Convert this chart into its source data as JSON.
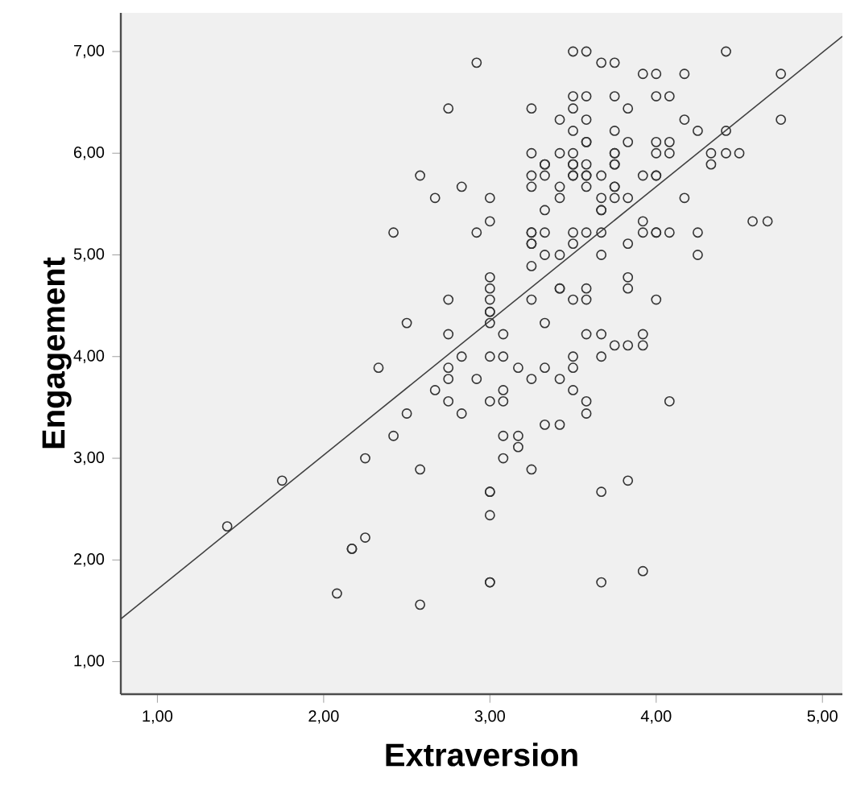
{
  "chart_data": {
    "type": "scatter",
    "xlabel": "Extraversion",
    "ylabel": "Engagement",
    "xlim": [
      0.78,
      5.12
    ],
    "ylim": [
      0.68,
      7.38
    ],
    "xticks": [
      {
        "value": 1,
        "label": "1,00"
      },
      {
        "value": 2,
        "label": "2,00"
      },
      {
        "value": 3,
        "label": "3,00"
      },
      {
        "value": 4,
        "label": "4,00"
      },
      {
        "value": 5,
        "label": "5,00"
      }
    ],
    "yticks": [
      {
        "value": 1,
        "label": "1,00"
      },
      {
        "value": 2,
        "label": "2,00"
      },
      {
        "value": 3,
        "label": "3,00"
      },
      {
        "value": 4,
        "label": "4,00"
      },
      {
        "value": 5,
        "label": "5,00"
      },
      {
        "value": 6,
        "label": "6,00"
      },
      {
        "value": 7,
        "label": "7,00"
      }
    ],
    "series": [
      {
        "marker": "circle",
        "color": "#333333",
        "x": [
          3.5,
          3.58,
          4.42,
          2.92,
          3.67,
          3.75,
          3.92,
          4.0,
          4.17,
          4.75,
          3.5,
          3.58,
          3.75,
          4.0,
          4.08,
          3.25,
          3.5,
          3.83,
          2.75,
          3.42,
          3.58,
          4.17,
          4.75,
          3.5,
          3.75,
          4.25,
          4.42,
          3.58,
          3.58,
          3.83,
          4.0,
          4.08,
          3.25,
          3.42,
          3.5,
          3.75,
          3.75,
          4.0,
          4.08,
          4.33,
          4.42,
          4.5,
          3.33,
          3.33,
          3.5,
          3.5,
          3.58,
          3.75,
          3.75,
          4.33,
          3.25,
          3.33,
          3.5,
          3.5,
          3.58,
          3.58,
          3.67,
          3.92,
          4.0,
          4.0,
          2.58,
          3.25,
          3.42,
          3.58,
          3.75,
          3.75,
          2.83,
          3.0,
          3.42,
          3.67,
          3.75,
          3.83,
          4.17,
          2.67,
          3.33,
          3.67,
          3.67,
          3.0,
          3.92,
          4.58,
          4.67,
          2.92,
          3.25,
          3.25,
          3.33,
          3.5,
          3.58,
          3.67,
          3.92,
          4.0,
          4.0,
          4.08,
          4.25,
          2.42,
          3.25,
          3.25,
          3.5,
          3.83,
          3.33,
          3.42,
          3.67,
          4.25,
          3.25,
          3.0,
          3.83,
          3.0,
          3.42,
          3.42,
          3.58,
          3.83,
          3.0,
          3.25,
          3.5,
          3.58,
          4.0,
          2.75,
          3.0,
          3.0,
          3.0,
          3.33,
          2.5,
          3.08,
          3.58,
          3.67,
          3.92,
          2.75,
          3.75,
          3.83,
          3.92,
          3.0,
          3.08,
          3.5,
          3.67,
          2.83,
          3.17,
          3.33,
          3.5,
          2.75,
          2.33,
          2.75,
          2.92,
          3.25,
          3.42,
          2.67,
          3.08,
          3.5,
          2.75,
          3.0,
          3.08,
          3.58,
          4.08,
          2.83,
          2.5,
          3.58,
          3.33,
          3.42,
          2.42,
          3.08,
          3.17,
          3.17,
          2.25,
          3.08,
          2.58,
          3.25,
          1.75,
          3.83,
          3.0,
          3.0,
          3.67,
          3.0,
          1.42,
          2.25,
          2.17,
          2.17,
          3.92,
          3.0,
          3.0,
          3.67,
          2.08,
          2.58
        ],
        "values": [
          7.0,
          7.0,
          7.0,
          6.89,
          6.89,
          6.89,
          6.78,
          6.78,
          6.78,
          6.78,
          6.56,
          6.56,
          6.56,
          6.56,
          6.56,
          6.44,
          6.44,
          6.44,
          6.44,
          6.33,
          6.33,
          6.33,
          6.33,
          6.22,
          6.22,
          6.22,
          6.22,
          6.11,
          6.11,
          6.11,
          6.11,
          6.11,
          6.0,
          6.0,
          6.0,
          6.0,
          6.0,
          6.0,
          6.0,
          6.0,
          6.0,
          6.0,
          5.89,
          5.89,
          5.89,
          5.89,
          5.89,
          5.89,
          5.89,
          5.89,
          5.78,
          5.78,
          5.78,
          5.78,
          5.78,
          5.78,
          5.78,
          5.78,
          5.78,
          5.78,
          5.78,
          5.67,
          5.67,
          5.67,
          5.67,
          5.67,
          5.67,
          5.56,
          5.56,
          5.56,
          5.56,
          5.56,
          5.56,
          5.56,
          5.44,
          5.44,
          5.44,
          5.33,
          5.33,
          5.33,
          5.33,
          5.22,
          5.22,
          5.22,
          5.22,
          5.22,
          5.22,
          5.22,
          5.22,
          5.22,
          5.22,
          5.22,
          5.22,
          5.22,
          5.11,
          5.11,
          5.11,
          5.11,
          5.0,
          5.0,
          5.0,
          5.0,
          4.89,
          4.78,
          4.78,
          4.67,
          4.67,
          4.67,
          4.67,
          4.67,
          4.56,
          4.56,
          4.56,
          4.56,
          4.56,
          4.56,
          4.44,
          4.44,
          4.33,
          4.33,
          4.33,
          4.22,
          4.22,
          4.22,
          4.22,
          4.22,
          4.11,
          4.11,
          4.11,
          4.0,
          4.0,
          4.0,
          4.0,
          4.0,
          3.89,
          3.89,
          3.89,
          3.89,
          3.89,
          3.78,
          3.78,
          3.78,
          3.78,
          3.67,
          3.67,
          3.67,
          3.56,
          3.56,
          3.56,
          3.56,
          3.56,
          3.44,
          3.44,
          3.44,
          3.33,
          3.33,
          3.22,
          3.22,
          3.22,
          3.11,
          3.0,
          3.0,
          2.89,
          2.89,
          2.78,
          2.78,
          2.67,
          2.67,
          2.67,
          2.44,
          2.33,
          2.22,
          2.11,
          2.11,
          1.89,
          1.78,
          1.78,
          1.78,
          1.67,
          1.56
        ]
      },
      {
        "type": "line",
        "color": "#404040",
        "line_style": "solid",
        "x": [
          0.78,
          5.12
        ],
        "values": [
          1.42,
          7.15
        ]
      }
    ]
  }
}
